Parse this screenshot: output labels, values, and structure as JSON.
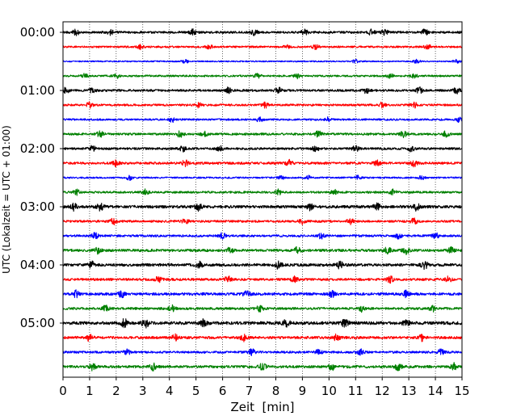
{
  "chart_data": {
    "type": "line",
    "title": "",
    "xlabel": "Zeit  [min]",
    "ylabel": "UTC (Lokalzeit = UTC + 01:00)",
    "xlim": [
      0,
      15
    ],
    "x_ticks": [
      0,
      1,
      2,
      3,
      4,
      5,
      6,
      7,
      8,
      9,
      10,
      11,
      12,
      13,
      14,
      15
    ],
    "x_tick_labels": [
      "0",
      "1",
      "2",
      "3",
      "4",
      "5",
      "6",
      "7",
      "8",
      "9",
      "10",
      "11",
      "12",
      "13",
      "14",
      "15"
    ],
    "y_tick_labels": [
      "00:00",
      "01:00",
      "02:00",
      "03:00",
      "04:00",
      "05:00"
    ],
    "trace_interval_min": 15,
    "grid": "vertical-dotted",
    "color_cycle": [
      "#000000",
      "#ff0000",
      "#0000ff",
      "#008000"
    ],
    "series": [
      {
        "start": "00:00",
        "color": "#000000",
        "amplitude": 0.3,
        "bursts_min": [
          0.5,
          1.8,
          4.9,
          7.2,
          9.1,
          11.6,
          12.1,
          13.6
        ]
      },
      {
        "start": "00:15",
        "color": "#ff0000",
        "amplitude": 0.25,
        "bursts_min": [
          2.9,
          5.5,
          8.4,
          9.5,
          13.7
        ]
      },
      {
        "start": "00:30",
        "color": "#0000ff",
        "amplitude": 0.18,
        "bursts_min": [
          4.6,
          11.0,
          13.3,
          14.8
        ]
      },
      {
        "start": "00:45",
        "color": "#008000",
        "amplitude": 0.25,
        "bursts_min": [
          0.8,
          2.0,
          7.3,
          8.8,
          12.3,
          13.2
        ]
      },
      {
        "start": "01:00",
        "color": "#000000",
        "amplitude": 0.3,
        "bursts_min": [
          0.1,
          1.1,
          6.2,
          8.1,
          11.4,
          13.4,
          14.8
        ]
      },
      {
        "start": "01:15",
        "color": "#ff0000",
        "amplitude": 0.28,
        "bursts_min": [
          1.0,
          5.1,
          7.6,
          12.0,
          13.2
        ]
      },
      {
        "start": "01:30",
        "color": "#0000ff",
        "amplitude": 0.25,
        "bursts_min": [
          4.1,
          7.4,
          10.0,
          14.9
        ]
      },
      {
        "start": "01:45",
        "color": "#008000",
        "amplitude": 0.3,
        "bursts_min": [
          1.4,
          4.4,
          5.3,
          9.6,
          12.8,
          14.4
        ]
      },
      {
        "start": "02:00",
        "color": "#000000",
        "amplitude": 0.3,
        "bursts_min": [
          1.1,
          4.5,
          5.9,
          9.5,
          11.0,
          13.1
        ]
      },
      {
        "start": "02:15",
        "color": "#ff0000",
        "amplitude": 0.32,
        "bursts_min": [
          2.0,
          4.6,
          8.5,
          11.8,
          13.2
        ]
      },
      {
        "start": "02:30",
        "color": "#0000ff",
        "amplitude": 0.22,
        "bursts_min": [
          2.5,
          8.2,
          9.2,
          11.1,
          13.5
        ]
      },
      {
        "start": "02:45",
        "color": "#008000",
        "amplitude": 0.28,
        "bursts_min": [
          0.5,
          3.1,
          8.1,
          10.2,
          12.4
        ]
      },
      {
        "start": "03:00",
        "color": "#000000",
        "amplitude": 0.38,
        "bursts_min": [
          0.4,
          1.4,
          5.1,
          9.3,
          11.8,
          13.3
        ]
      },
      {
        "start": "03:15",
        "color": "#ff0000",
        "amplitude": 0.3,
        "bursts_min": [
          1.9,
          4.6,
          9.0,
          10.8,
          13.2
        ]
      },
      {
        "start": "03:30",
        "color": "#0000ff",
        "amplitude": 0.3,
        "bursts_min": [
          1.2,
          6.0,
          9.7,
          12.6,
          14.0
        ]
      },
      {
        "start": "03:45",
        "color": "#008000",
        "amplitude": 0.35,
        "bursts_min": [
          1.3,
          6.3,
          8.8,
          12.2,
          12.9,
          14.6
        ]
      },
      {
        "start": "04:00",
        "color": "#000000",
        "amplitude": 0.38,
        "bursts_min": [
          1.1,
          5.1,
          8.1,
          10.4,
          13.6
        ]
      },
      {
        "start": "04:15",
        "color": "#ff0000",
        "amplitude": 0.32,
        "bursts_min": [
          3.6,
          6.2,
          8.7,
          12.3,
          14.5
        ]
      },
      {
        "start": "04:30",
        "color": "#0000ff",
        "amplitude": 0.35,
        "bursts_min": [
          0.5,
          2.2,
          6.9,
          10.1,
          12.9
        ]
      },
      {
        "start": "04:45",
        "color": "#008000",
        "amplitude": 0.32,
        "bursts_min": [
          1.6,
          4.1,
          7.4,
          11.2,
          13.9
        ]
      },
      {
        "start": "05:00",
        "color": "#000000",
        "amplitude": 0.42,
        "bursts_min": [
          2.3,
          3.1,
          5.3,
          8.4,
          10.6,
          12.9
        ]
      },
      {
        "start": "05:15",
        "color": "#ff0000",
        "amplitude": 0.35,
        "bursts_min": [
          1.0,
          4.2,
          6.8,
          10.3,
          13.5
        ]
      },
      {
        "start": "05:30",
        "color": "#0000ff",
        "amplitude": 0.3,
        "bursts_min": [
          2.4,
          7.1,
          9.6,
          11.2,
          14.2
        ]
      },
      {
        "start": "05:45",
        "color": "#008000",
        "amplitude": 0.35,
        "bursts_min": [
          1.1,
          3.4,
          7.5,
          10.1,
          12.6,
          14.7
        ]
      }
    ]
  }
}
